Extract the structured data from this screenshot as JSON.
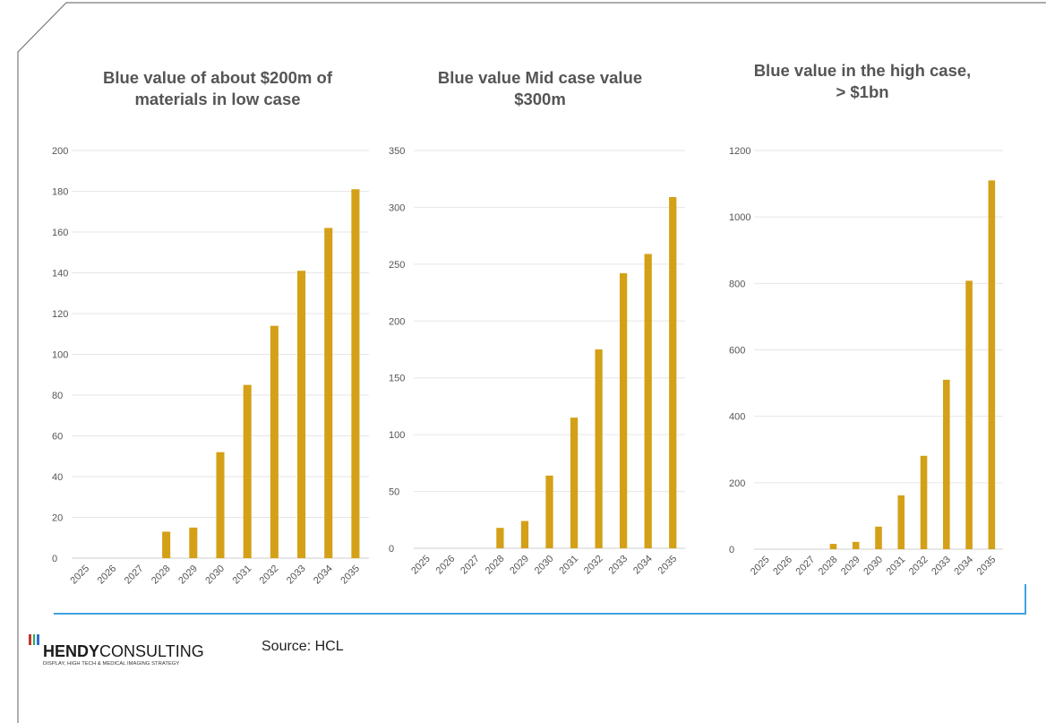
{
  "colors": {
    "bar": "#d4a017",
    "frame": "#7a7a7a",
    "divider": "#3fa3e0",
    "grid": "#e6e6e6"
  },
  "chart_data": [
    {
      "type": "bar",
      "title": "Blue value of about $200m of materials in low case",
      "categories": [
        "2025",
        "2026",
        "2027",
        "2028",
        "2029",
        "2030",
        "2031",
        "2032",
        "2033",
        "2034",
        "2035"
      ],
      "values": [
        0,
        0,
        0,
        13,
        15,
        52,
        85,
        114,
        141,
        162,
        181
      ],
      "ylim": [
        0,
        200
      ],
      "yticks": [
        "0",
        "20",
        "40",
        "60",
        "80",
        "100",
        "120",
        "140",
        "160",
        "180",
        "200"
      ],
      "grid": true,
      "legend": "none"
    },
    {
      "type": "bar",
      "title": "Blue value Mid case value $300m",
      "categories": [
        "2025",
        "2026",
        "2027",
        "2028",
        "2029",
        "2030",
        "2031",
        "2032",
        "2033",
        "2034",
        "2035"
      ],
      "values": [
        0,
        0,
        0,
        18,
        24,
        64,
        115,
        175,
        242,
        259,
        309
      ],
      "ylim": [
        0,
        350
      ],
      "yticks": [
        "0",
        "50",
        "100",
        "150",
        "200",
        "250",
        "300",
        "350"
      ],
      "grid": true,
      "legend": "none"
    },
    {
      "type": "bar",
      "title": "Blue value in the high case, > $1bn",
      "categories": [
        "2025",
        "2026",
        "2027",
        "2028",
        "2029",
        "2030",
        "2031",
        "2032",
        "2033",
        "2034",
        "2035"
      ],
      "values": [
        0,
        0,
        0,
        16,
        22,
        68,
        162,
        281,
        510,
        808,
        1110
      ],
      "ylim": [
        0,
        1200
      ],
      "yticks": [
        "0",
        "200",
        "400",
        "600",
        "800",
        "1000",
        "1200"
      ],
      "grid": true,
      "legend": "none"
    }
  ],
  "footer": {
    "source": "Source: HCL",
    "logo_bold": "HENDY",
    "logo_light": "CONSULTING",
    "logo_tagline": "DISPLAY, HIGH TECH & MEDICAL IMAGING STRATEGY",
    "logo_bar_colors": [
      "#c0392b",
      "#27ae60",
      "#2e6fd1"
    ]
  }
}
